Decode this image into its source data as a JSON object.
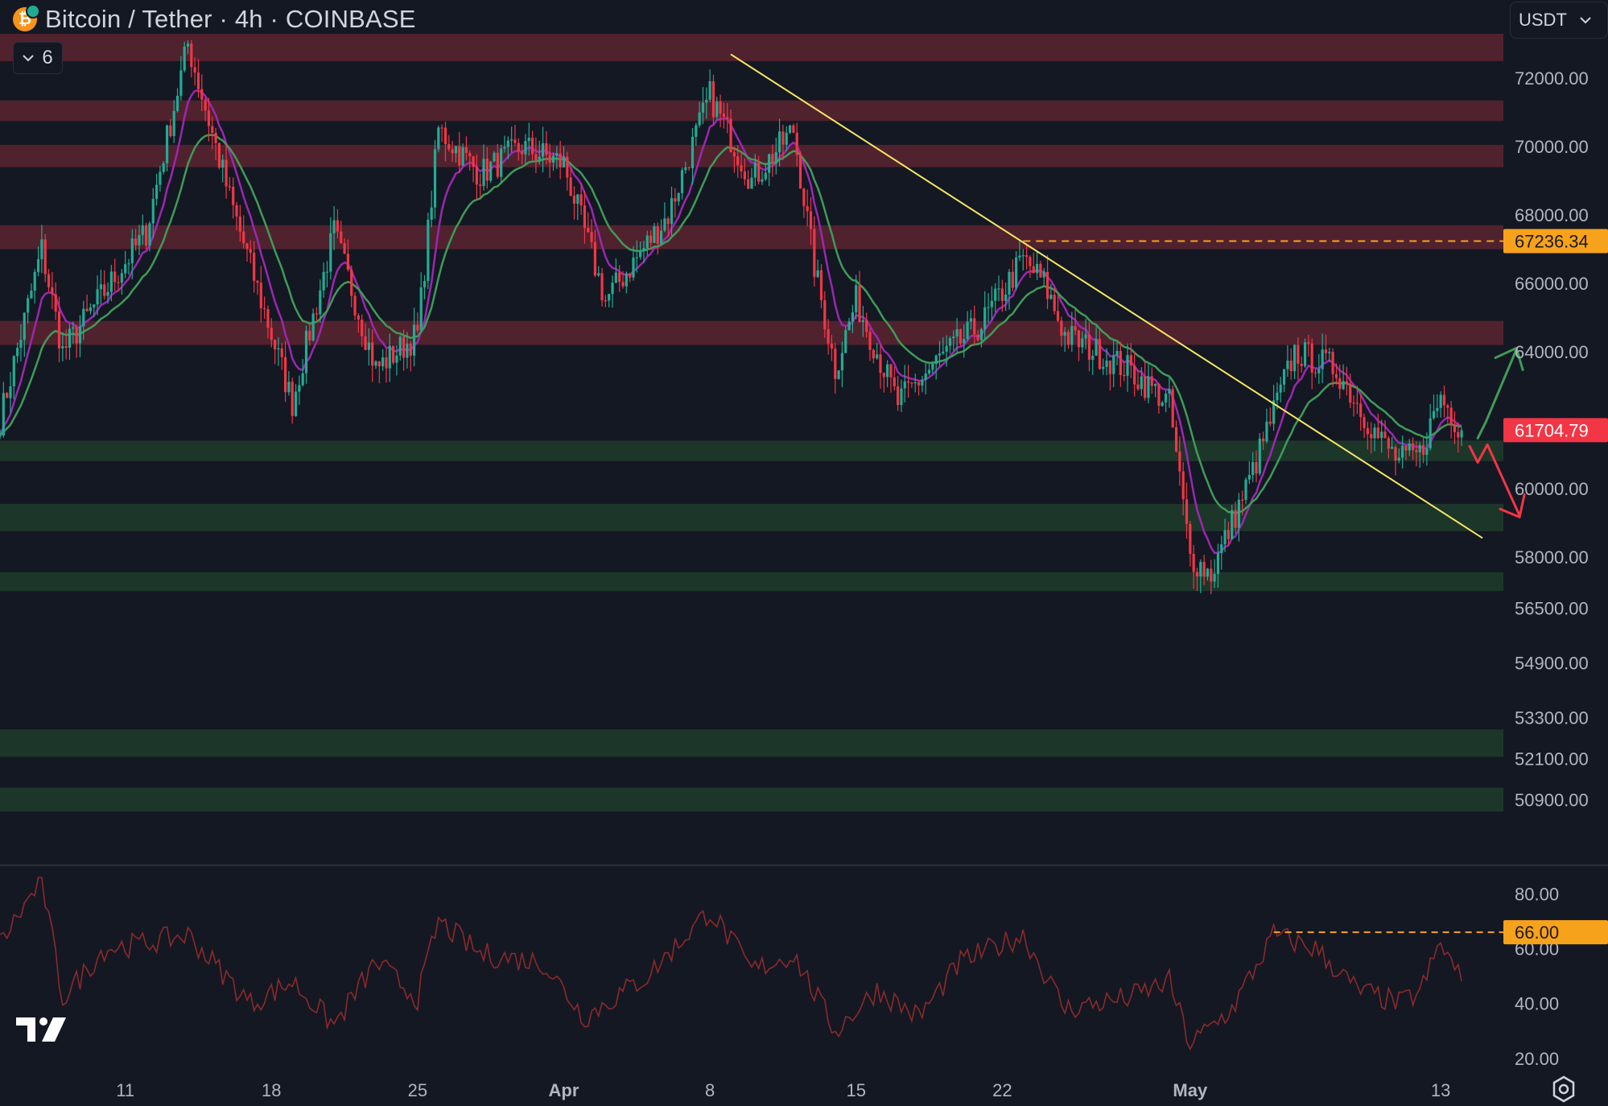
{
  "header": {
    "symbol_title": "Bitcoin / Tether · 4h · COINBASE",
    "indicator_count": "6",
    "currency": "USDT"
  },
  "colors": {
    "background": "#141823",
    "resistance_zone": "#5a2430",
    "support_zone": "#1e3a2b",
    "trendline": "#f5e663",
    "ema_fast": "#9c27b0",
    "ema_slow": "#3f9b58",
    "candle_up": "#22ab94",
    "candle_down": "#f23645",
    "rsi_line": "#8b2a2a",
    "orange_marker": "#f7a21b",
    "price_marker": "#f23645"
  },
  "icons": [
    "bitcoin-coin-icon",
    "chevron-down-icon",
    "tradingview-logo-icon",
    "settings-gear-icon",
    "up-arrow-icon",
    "down-arrow-icon"
  ],
  "chart_data": [
    {
      "type": "candlestick",
      "title": "Bitcoin / Tether · 4h · COINBASE",
      "y_tick_labels": [
        "72000.00",
        "70000.00",
        "68000.00",
        "66000.00",
        "64000.00",
        "60000.00",
        "58000.00",
        "56500.00",
        "54900.00",
        "53300.00",
        "52100.00",
        "50900.00"
      ],
      "y_tick_values": [
        72000,
        70000,
        68000,
        66000,
        64000,
        60000,
        58000,
        56500,
        54900,
        53300,
        52100,
        50900
      ],
      "ylim": [
        49800,
        73300
      ],
      "x_tick_labels": [
        "11",
        "18",
        "25",
        "Apr",
        "8",
        "15",
        "22",
        "May",
        "13"
      ],
      "x_range": [
        "2024-03-05",
        "2024-05-16"
      ],
      "resistance_zones": [
        [
          72500,
          73300
        ],
        [
          70750,
          71350
        ],
        [
          69400,
          70050
        ],
        [
          67000,
          67700
        ],
        [
          64200,
          64900
        ]
      ],
      "support_zones": [
        [
          60800,
          61400
        ],
        [
          58750,
          59550
        ],
        [
          57000,
          57550
        ],
        [
          52150,
          52950
        ],
        [
          50550,
          51250
        ]
      ],
      "trendline": {
        "from": {
          "x": "2024-04-09",
          "y": 72700
        },
        "to": {
          "x": "2024-05-15",
          "y": 58550
        }
      },
      "horizontal_line": {
        "value": 67236.34,
        "label": "67236.34",
        "from_x": "2024-04-23"
      },
      "last_price": {
        "value": 61704.79,
        "label": "61704.79"
      },
      "key_points": [
        {
          "x": "2024-03-05",
          "y": 62000
        },
        {
          "x": "2024-03-07",
          "y": 67000
        },
        {
          "x": "2024-03-08",
          "y": 64000
        },
        {
          "x": "2024-03-12",
          "y": 67500
        },
        {
          "x": "2024-03-14",
          "y": 73000
        },
        {
          "x": "2024-03-16",
          "y": 68500
        },
        {
          "x": "2024-03-19",
          "y": 62500
        },
        {
          "x": "2024-03-21",
          "y": 67500
        },
        {
          "x": "2024-03-23",
          "y": 63500
        },
        {
          "x": "2024-03-25",
          "y": 64500
        },
        {
          "x": "2024-03-26",
          "y": 70500
        },
        {
          "x": "2024-03-28",
          "y": 69200
        },
        {
          "x": "2024-03-30",
          "y": 70000
        },
        {
          "x": "2024-04-01",
          "y": 69500
        },
        {
          "x": "2024-04-03",
          "y": 65500
        },
        {
          "x": "2024-04-06",
          "y": 68000
        },
        {
          "x": "2024-04-08",
          "y": 71500
        },
        {
          "x": "2024-04-10",
          "y": 69000
        },
        {
          "x": "2024-04-12",
          "y": 70500
        },
        {
          "x": "2024-04-13",
          "y": 66500
        },
        {
          "x": "2024-04-14",
          "y": 63500
        },
        {
          "x": "2024-04-15",
          "y": 65500
        },
        {
          "x": "2024-04-17",
          "y": 62500
        },
        {
          "x": "2024-04-19",
          "y": 63800
        },
        {
          "x": "2024-04-21",
          "y": 64800
        },
        {
          "x": "2024-04-23",
          "y": 66700
        },
        {
          "x": "2024-04-24",
          "y": 66000
        },
        {
          "x": "2024-04-25",
          "y": 64500
        },
        {
          "x": "2024-04-28",
          "y": 63500
        },
        {
          "x": "2024-04-30",
          "y": 62500
        },
        {
          "x": "2024-05-01",
          "y": 58000
        },
        {
          "x": "2024-05-02",
          "y": 57500
        },
        {
          "x": "2024-05-04",
          "y": 60500
        },
        {
          "x": "2024-05-06",
          "y": 64000
        },
        {
          "x": "2024-05-08",
          "y": 63500
        },
        {
          "x": "2024-05-10",
          "y": 61500
        },
        {
          "x": "2024-05-11",
          "y": 60800
        },
        {
          "x": "2024-05-12",
          "y": 61000
        },
        {
          "x": "2024-05-13",
          "y": 62700
        },
        {
          "x": "2024-05-14",
          "y": 61704.79
        }
      ],
      "scenario_arrows": [
        {
          "direction": "up",
          "color": "#3f9b58"
        },
        {
          "direction": "down",
          "color": "#f23645"
        }
      ]
    },
    {
      "type": "line",
      "title": "",
      "y_tick_labels": [
        "80.00",
        "60.00",
        "40.00",
        "20.00"
      ],
      "y_tick_values": [
        80,
        60,
        40,
        20
      ],
      "ylim": [
        17,
        86
      ],
      "marker": {
        "value": 66,
        "label": "66.00"
      },
      "key_points": [
        {
          "x": "2024-03-05",
          "y": 62
        },
        {
          "x": "2024-03-07",
          "y": 85
        },
        {
          "x": "2024-03-08",
          "y": 42
        },
        {
          "x": "2024-03-10",
          "y": 60
        },
        {
          "x": "2024-03-12",
          "y": 62
        },
        {
          "x": "2024-03-14",
          "y": 65
        },
        {
          "x": "2024-03-17",
          "y": 40
        },
        {
          "x": "2024-03-19",
          "y": 48
        },
        {
          "x": "2024-03-21",
          "y": 32
        },
        {
          "x": "2024-03-23",
          "y": 55
        },
        {
          "x": "2024-03-25",
          "y": 42
        },
        {
          "x": "2024-03-26",
          "y": 70
        },
        {
          "x": "2024-03-28",
          "y": 58
        },
        {
          "x": "2024-03-31",
          "y": 55
        },
        {
          "x": "2024-04-02",
          "y": 35
        },
        {
          "x": "2024-04-05",
          "y": 50
        },
        {
          "x": "2024-04-08",
          "y": 74
        },
        {
          "x": "2024-04-10",
          "y": 52
        },
        {
          "x": "2024-04-12",
          "y": 58
        },
        {
          "x": "2024-04-14",
          "y": 30
        },
        {
          "x": "2024-04-16",
          "y": 45
        },
        {
          "x": "2024-04-18",
          "y": 35
        },
        {
          "x": "2024-04-20",
          "y": 55
        },
        {
          "x": "2024-04-23",
          "y": 65
        },
        {
          "x": "2024-04-25",
          "y": 38
        },
        {
          "x": "2024-04-28",
          "y": 42
        },
        {
          "x": "2024-04-30",
          "y": 48
        },
        {
          "x": "2024-05-01",
          "y": 25
        },
        {
          "x": "2024-05-03",
          "y": 38
        },
        {
          "x": "2024-05-05",
          "y": 65
        },
        {
          "x": "2024-05-07",
          "y": 60
        },
        {
          "x": "2024-05-09",
          "y": 45
        },
        {
          "x": "2024-05-11",
          "y": 40
        },
        {
          "x": "2024-05-12",
          "y": 44
        },
        {
          "x": "2024-05-13",
          "y": 62
        },
        {
          "x": "2024-05-14",
          "y": 48
        }
      ]
    }
  ]
}
